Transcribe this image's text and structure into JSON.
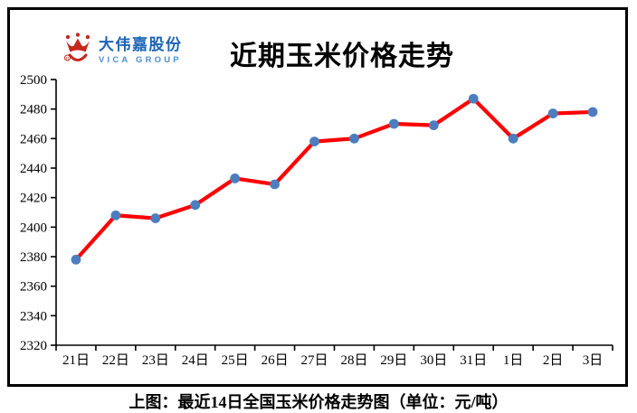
{
  "logo": {
    "icon": "crown-icon",
    "company_cn": "大伟嘉股份",
    "company_en": "VICA GROUP",
    "colors": {
      "brand_red": "#C5281C",
      "brand_blue": "#1C63B7",
      "brand_blue_light": "#4E8FD0"
    }
  },
  "header": {
    "title": "近期玉米价格走势"
  },
  "caption": {
    "text": "上图：最近14日全国玉米价格走势图（单位：元/吨）"
  },
  "chart_data": {
    "type": "line",
    "title": "近期玉米价格走势",
    "categories": [
      "21日",
      "22日",
      "23日",
      "24日",
      "25日",
      "26日",
      "27日",
      "28日",
      "29日",
      "30日",
      "31日",
      "1日",
      "2日",
      "3日"
    ],
    "series": [
      {
        "name": "全国玉米价格",
        "values": [
          2378,
          2408,
          2406,
          2415,
          2433,
          2429,
          2458,
          2460,
          2470,
          2469,
          2487,
          2460,
          2477,
          2478
        ]
      }
    ],
    "xlabel": "",
    "ylabel": "",
    "ylim": [
      2320,
      2500
    ],
    "ytick_step": 20,
    "unit": "元/吨",
    "grid": false,
    "legend": "none",
    "line_color": "#FE0000",
    "marker_color": "#4C7EBF",
    "axis_color": "#000000"
  }
}
